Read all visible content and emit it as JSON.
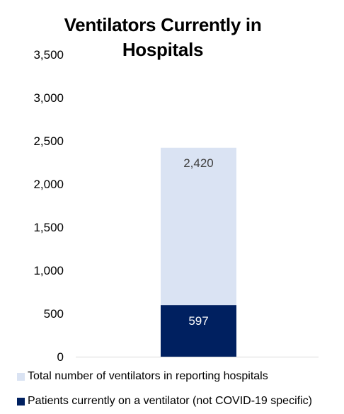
{
  "chart_data": {
    "type": "bar",
    "stacked": true,
    "title": "Ventilators Currently in Hospitals",
    "xlabel": "",
    "ylabel": "",
    "categories": [
      ""
    ],
    "ylim": [
      0,
      3500
    ],
    "yticks": [
      0,
      500,
      1000,
      1500,
      2000,
      2500,
      3000,
      3500
    ],
    "ytick_labels": [
      "0",
      "500",
      "1,000",
      "1,500",
      "2,000",
      "2,500",
      "3,000",
      "3,500"
    ],
    "grid": false,
    "legend_position": "bottom",
    "series": [
      {
        "name": "Patients currently on a ventilator (not COVID-19 specific)",
        "values": [
          597
        ],
        "data_labels": [
          "597"
        ],
        "color": "#002060",
        "label_color": "#ffffff"
      },
      {
        "name": "Total number of ventilators in reporting hospitals",
        "values": [
          2420
        ],
        "data_labels": [
          "2,420"
        ],
        "color": "#dae3f3",
        "label_color": "#404040",
        "stack_mode": "total"
      }
    ],
    "legend_order": [
      1,
      0
    ]
  }
}
